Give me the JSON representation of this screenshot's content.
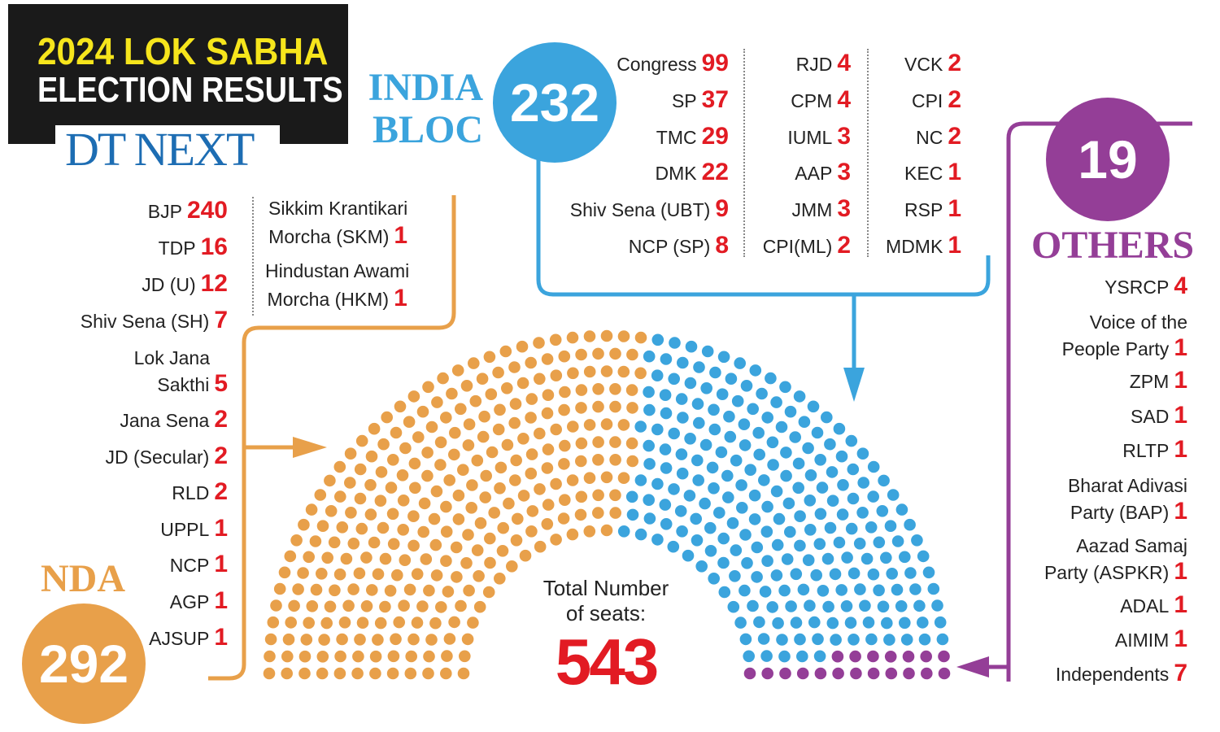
{
  "header": {
    "title_line1": "2024 LOK SABHA",
    "title_line2": "ELECTION RESULTS",
    "logo_text": "DT NEXT"
  },
  "colors": {
    "nda": "#e8a04a",
    "india": "#3ba4dd",
    "others": "#943e97",
    "value_red": "#e21b23"
  },
  "total": {
    "label_line1": "Total Number",
    "label_line2": "of seats:",
    "value": "543"
  },
  "chart_data": {
    "type": "parliament",
    "total_seats": 543,
    "series": [
      {
        "name": "NDA",
        "total": 292,
        "parties": [
          {
            "name": "BJP",
            "seats": 240
          },
          {
            "name": "TDP",
            "seats": 16
          },
          {
            "name": "JD (U)",
            "seats": 12
          },
          {
            "name": "Shiv Sena (SH)",
            "seats": 7
          },
          {
            "name": "Lok Jana Sakthi",
            "seats": 5
          },
          {
            "name": "Jana Sena",
            "seats": 2
          },
          {
            "name": "JD (Secular)",
            "seats": 2
          },
          {
            "name": "RLD",
            "seats": 2
          },
          {
            "name": "UPPL",
            "seats": 1
          },
          {
            "name": "NCP",
            "seats": 1
          },
          {
            "name": "AGP",
            "seats": 1
          },
          {
            "name": "AJSUP",
            "seats": 1
          },
          {
            "name": "Sikkim Krantikari Morcha (SKM)",
            "seats": 1
          },
          {
            "name": "Hindustan Awami Morcha (HKM)",
            "seats": 1
          }
        ]
      },
      {
        "name": "INDIA BLOC",
        "total": 232,
        "parties": [
          {
            "name": "Congress",
            "seats": 99
          },
          {
            "name": "SP",
            "seats": 37
          },
          {
            "name": "TMC",
            "seats": 29
          },
          {
            "name": "DMK",
            "seats": 22
          },
          {
            "name": "Shiv Sena (UBT)",
            "seats": 9
          },
          {
            "name": "NCP (SP)",
            "seats": 8
          },
          {
            "name": "RJD",
            "seats": 4
          },
          {
            "name": "CPM",
            "seats": 4
          },
          {
            "name": "IUML",
            "seats": 3
          },
          {
            "name": "AAP",
            "seats": 3
          },
          {
            "name": "JMM",
            "seats": 3
          },
          {
            "name": "CPI(ML)",
            "seats": 2
          },
          {
            "name": "VCK",
            "seats": 2
          },
          {
            "name": "CPI",
            "seats": 2
          },
          {
            "name": "NC",
            "seats": 2
          },
          {
            "name": "KEC",
            "seats": 1
          },
          {
            "name": "RSP",
            "seats": 1
          },
          {
            "name": "MDMK",
            "seats": 1
          }
        ]
      },
      {
        "name": "OTHERS",
        "total": 19,
        "parties": [
          {
            "name": "YSRCP",
            "seats": 4
          },
          {
            "name": "Voice of the People Party",
            "seats": 1
          },
          {
            "name": "ZPM",
            "seats": 1
          },
          {
            "name": "SAD",
            "seats": 1
          },
          {
            "name": "RLTP",
            "seats": 1
          },
          {
            "name": "Bharat Adivasi Party (BAP)",
            "seats": 1
          },
          {
            "name": "Aazad Samaj Party (ASPKR)",
            "seats": 1
          },
          {
            "name": "ADAL",
            "seats": 1
          },
          {
            "name": "AIMIM",
            "seats": 1
          },
          {
            "name": "Independents",
            "seats": 7
          }
        ]
      }
    ]
  },
  "labels": {
    "nda": "NDA",
    "india_line1": "INDIA",
    "india_line2": "BLOC",
    "others": "OTHERS",
    "skm_line1": "Sikkim Krantikari",
    "skm_line2": "Morcha (SKM)",
    "hkm_line1": "Hindustan Awami",
    "hkm_line2": "Morcha (HKM)",
    "ljs_line1": "Lok Jana",
    "ljs_line2": "Sakthi",
    "vpp_line1": "Voice of the",
    "vpp_line2": "People Party",
    "bap_line1": "Bharat Adivasi",
    "bap_line2": "Party (BAP)",
    "asp_line1": "Aazad Samaj",
    "asp_line2": "Party (ASPKR)"
  }
}
